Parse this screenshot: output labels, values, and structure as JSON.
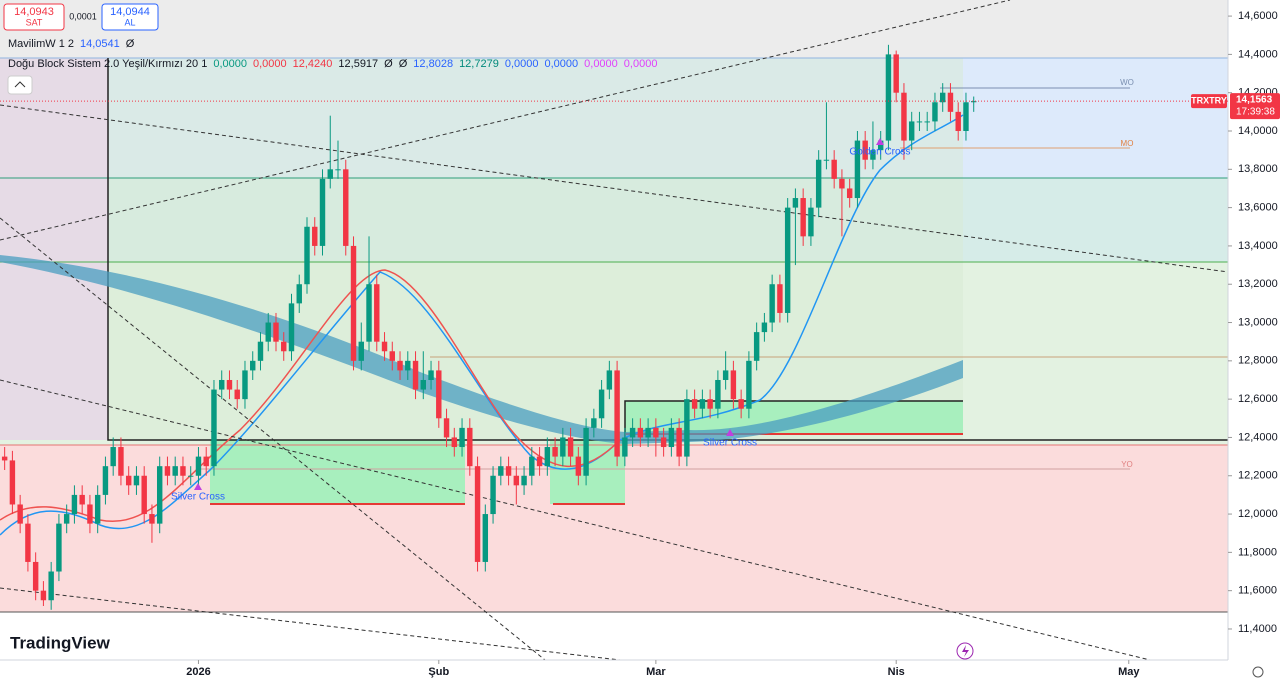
{
  "toolbar": {
    "sell": "14,0943",
    "sell_label": "SAT",
    "spread": "0,0001",
    "buy": "14,0944",
    "buy_label": "AL"
  },
  "indicators": [
    {
      "name": "MavilimW 1 2",
      "values": [
        {
          "text": "14,0541",
          "color": "#2962ff"
        },
        {
          "text": "Ø",
          "color": "#131722"
        }
      ]
    },
    {
      "name": "Doğu Block Sistem 2.0 Yeşil/Kırmızı 20 1",
      "values": [
        {
          "text": "0,0000",
          "color": "#089981"
        },
        {
          "text": "0,0000",
          "color": "#f23645"
        },
        {
          "text": "12,4240",
          "color": "#f23645"
        },
        {
          "text": "12,5917",
          "color": "#131722"
        },
        {
          "text": "Ø",
          "color": "#131722"
        },
        {
          "text": "Ø",
          "color": "#131722"
        },
        {
          "text": "12,8028",
          "color": "#2962ff"
        },
        {
          "text": "12,7279",
          "color": "#00897b"
        },
        {
          "text": "0,0000",
          "color": "#2962ff"
        },
        {
          "text": "0,0000",
          "color": "#2962ff"
        },
        {
          "text": "0,0000",
          "color": "#e040fb"
        },
        {
          "text": "0,0000",
          "color": "#e040fb"
        }
      ]
    }
  ],
  "brand": "TradingView",
  "chart_data": {
    "type": "candlestick",
    "symbol": "TRXTRY",
    "last_price": {
      "value": 14.1563,
      "label": "14,1563"
    },
    "countdown": "17:39:38",
    "up_color": "#089981",
    "down_color": "#f23645",
    "annotations": [
      "Silver Cross",
      "Silver Cross",
      "Golden Cross",
      "WO",
      "MO",
      "YO"
    ],
    "xlim": [
      -0.6,
      157.8
    ],
    "xticks": [
      {
        "value": 25,
        "label": "2026"
      },
      {
        "value": 56,
        "label": "Şub"
      },
      {
        "value": 84,
        "label": "Mar"
      },
      {
        "value": 115,
        "label": "Nis"
      },
      {
        "value": 145,
        "label": "May"
      }
    ],
    "ylim": [
      11.238,
      14.684
    ],
    "yticks": [
      {
        "value": 11.4,
        "label": "11,4000"
      },
      {
        "value": 11.6,
        "label": "11,6000"
      },
      {
        "value": 11.8,
        "label": "11,8000"
      },
      {
        "value": 12.0,
        "label": "12,0000"
      },
      {
        "value": 12.2,
        "label": "12,2000"
      },
      {
        "value": 12.4,
        "label": "12,4000"
      },
      {
        "value": 12.6,
        "label": "12,6000"
      },
      {
        "value": 12.8,
        "label": "12,8000"
      },
      {
        "value": 13.0,
        "label": "13,0000"
      },
      {
        "value": 13.2,
        "label": "13,2000"
      },
      {
        "value": 13.4,
        "label": "13,4000"
      },
      {
        "value": 13.6,
        "label": "13,6000"
      },
      {
        "value": 13.8,
        "label": "13,8000"
      },
      {
        "value": 14.0,
        "label": "14,0000"
      },
      {
        "value": 14.2,
        "label": "14,2000"
      },
      {
        "value": 14.4,
        "label": "14,4000"
      },
      {
        "value": 14.6,
        "label": "14,6000"
      }
    ],
    "grid": false,
    "open": [
      12.3,
      12.28,
      12.05,
      11.95,
      11.75,
      11.6,
      11.55,
      11.7,
      11.95,
      12.0,
      12.1,
      12.05,
      11.95,
      12.1,
      12.25,
      12.35,
      12.2,
      12.15,
      12.2,
      12.0,
      11.95,
      12.25,
      12.2,
      12.25,
      12.2,
      12.2,
      12.3,
      12.25,
      12.65,
      12.7,
      12.65,
      12.6,
      12.75,
      12.8,
      12.9,
      13.0,
      12.9,
      12.85,
      13.1,
      13.2,
      13.5,
      13.4,
      13.75,
      13.8,
      13.8,
      13.4,
      12.8,
      12.9,
      13.2,
      12.9,
      12.85,
      12.8,
      12.75,
      12.8,
      12.65,
      12.7,
      12.75,
      12.5,
      12.4,
      12.35,
      12.45,
      12.25,
      11.75,
      12.0,
      12.2,
      12.25,
      12.2,
      12.15,
      12.2,
      12.3,
      12.25,
      12.35,
      12.3,
      12.4,
      12.3,
      12.2,
      12.45,
      12.5,
      12.65,
      12.75,
      12.3,
      12.4,
      12.45,
      12.4,
      12.45,
      12.4,
      12.35,
      12.45,
      12.3,
      12.6,
      12.55,
      12.6,
      12.55,
      12.7,
      12.75,
      12.6,
      12.55,
      12.8,
      12.95,
      13.0,
      13.2,
      13.05,
      13.6,
      13.65,
      13.45,
      13.6,
      13.85,
      13.85,
      13.75,
      13.7,
      13.65,
      13.95,
      13.85,
      13.9,
      13.95,
      14.4,
      14.2,
      13.95,
      14.05,
      14.05,
      14.05,
      14.15,
      14.2,
      14.1,
      14.0,
      14.15
    ],
    "high": [
      12.35,
      12.33,
      12.1,
      12.0,
      11.8,
      11.65,
      11.75,
      12.0,
      12.05,
      12.15,
      12.15,
      12.1,
      12.15,
      12.3,
      12.4,
      12.4,
      12.25,
      12.25,
      12.25,
      12.05,
      12.3,
      12.3,
      12.3,
      12.3,
      12.25,
      12.35,
      12.35,
      12.7,
      12.75,
      12.75,
      12.7,
      12.8,
      12.85,
      12.95,
      13.05,
      13.05,
      12.95,
      13.15,
      13.25,
      13.55,
      13.55,
      13.8,
      14.08,
      13.95,
      13.85,
      13.45,
      13.0,
      13.45,
      13.25,
      12.95,
      12.9,
      12.85,
      12.85,
      12.85,
      12.85,
      12.8,
      12.8,
      12.55,
      12.45,
      12.5,
      12.5,
      12.3,
      12.05,
      12.25,
      12.3,
      12.3,
      12.25,
      12.25,
      12.35,
      12.35,
      12.4,
      12.4,
      12.45,
      12.45,
      12.35,
      12.5,
      12.55,
      12.7,
      12.8,
      12.8,
      12.45,
      12.5,
      12.5,
      12.5,
      12.5,
      12.45,
      12.5,
      12.5,
      12.65,
      12.65,
      12.65,
      12.65,
      12.75,
      12.85,
      12.8,
      12.65,
      12.85,
      13.0,
      13.05,
      13.25,
      13.25,
      13.65,
      13.7,
      13.7,
      13.65,
      13.9,
      14.15,
      13.9,
      13.8,
      13.75,
      14.0,
      14.0,
      14.05,
      14.0,
      14.45,
      14.42,
      14.25,
      14.1,
      14.1,
      14.1,
      14.2,
      14.25,
      14.25,
      14.15,
      14.2,
      14.18
    ],
    "low": [
      12.23,
      12.0,
      11.9,
      11.7,
      11.55,
      11.52,
      11.5,
      11.65,
      11.9,
      11.95,
      12.0,
      11.9,
      11.9,
      12.05,
      12.2,
      12.15,
      12.1,
      12.1,
      11.95,
      11.85,
      11.9,
      12.15,
      12.15,
      12.15,
      12.15,
      12.15,
      12.2,
      12.2,
      12.6,
      12.6,
      12.55,
      12.55,
      12.7,
      12.75,
      12.85,
      12.85,
      12.8,
      12.8,
      13.05,
      13.15,
      13.35,
      13.35,
      13.7,
      13.75,
      13.35,
      12.75,
      12.75,
      12.85,
      12.85,
      12.8,
      12.75,
      12.7,
      12.7,
      12.6,
      12.6,
      12.65,
      12.45,
      12.35,
      12.3,
      12.3,
      12.2,
      11.7,
      11.7,
      11.95,
      12.15,
      12.15,
      12.05,
      12.1,
      12.15,
      12.2,
      12.2,
      12.25,
      12.25,
      12.25,
      12.15,
      12.15,
      12.4,
      12.45,
      12.6,
      12.25,
      12.25,
      12.35,
      12.35,
      12.35,
      12.3,
      12.3,
      12.3,
      12.25,
      12.25,
      12.5,
      12.5,
      12.5,
      12.5,
      12.65,
      12.55,
      12.5,
      12.5,
      12.75,
      12.9,
      12.95,
      13.0,
      13.0,
      13.3,
      13.4,
      13.4,
      13.55,
      13.8,
      13.7,
      13.45,
      13.6,
      13.6,
      13.8,
      13.8,
      13.85,
      13.9,
      14.15,
      13.85,
      13.9,
      14.0,
      14.0,
      14.0,
      14.1,
      14.05,
      13.95,
      13.95,
      14.1
    ],
    "close": [
      12.28,
      12.05,
      11.95,
      11.75,
      11.6,
      11.55,
      11.7,
      11.95,
      12.0,
      12.1,
      12.05,
      11.95,
      12.1,
      12.25,
      12.35,
      12.2,
      12.15,
      12.2,
      12.0,
      11.95,
      12.25,
      12.2,
      12.25,
      12.2,
      12.2,
      12.3,
      12.25,
      12.65,
      12.7,
      12.65,
      12.6,
      12.75,
      12.8,
      12.9,
      13.0,
      12.9,
      12.85,
      13.1,
      13.2,
      13.5,
      13.4,
      13.75,
      13.8,
      13.8,
      13.4,
      12.8,
      12.9,
      13.2,
      12.9,
      12.85,
      12.8,
      12.75,
      12.8,
      12.65,
      12.7,
      12.75,
      12.5,
      12.4,
      12.35,
      12.45,
      12.25,
      11.75,
      12.0,
      12.2,
      12.25,
      12.2,
      12.15,
      12.2,
      12.3,
      12.25,
      12.35,
      12.3,
      12.4,
      12.3,
      12.2,
      12.45,
      12.5,
      12.65,
      12.75,
      12.3,
      12.4,
      12.45,
      12.4,
      12.45,
      12.4,
      12.35,
      12.45,
      12.3,
      12.6,
      12.55,
      12.6,
      12.55,
      12.7,
      12.75,
      12.6,
      12.55,
      12.8,
      12.95,
      13.0,
      13.2,
      13.05,
      13.6,
      13.65,
      13.45,
      13.6,
      13.85,
      13.85,
      13.75,
      13.7,
      13.65,
      13.95,
      13.85,
      13.9,
      13.95,
      14.4,
      14.2,
      13.95,
      14.05,
      14.05,
      14.05,
      14.15,
      14.2,
      14.1,
      14.0,
      14.15,
      14.1563
    ]
  }
}
